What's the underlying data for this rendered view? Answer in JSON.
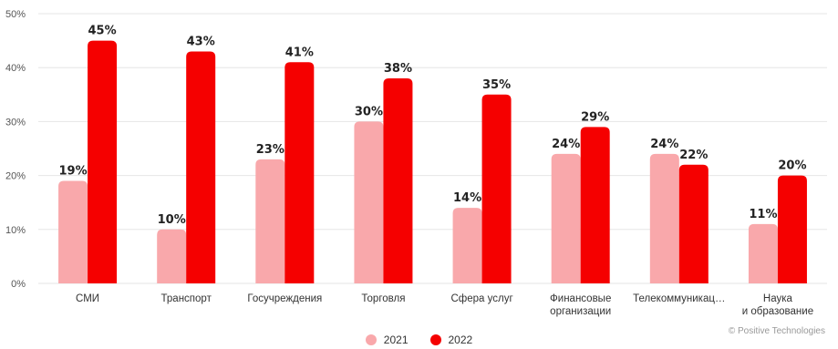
{
  "chart_data": {
    "type": "bar",
    "categories": [
      "СМИ",
      "Транспорт",
      "Госучреждения",
      "Торговля",
      "Сфера услуг",
      "Финансовые организации",
      "Телекоммуникац…",
      "Наука и образование"
    ],
    "series": [
      {
        "name": "2021",
        "values": [
          19,
          10,
          23,
          30,
          14,
          24,
          24,
          11
        ],
        "color": "#f9a8ab"
      },
      {
        "name": "2022",
        "values": [
          45,
          43,
          41,
          38,
          35,
          29,
          22,
          20
        ],
        "color": "#f50000"
      }
    ],
    "y_ticks": [
      "0%",
      "10%",
      "20%",
      "30%",
      "40%",
      "50%"
    ],
    "ylim": [
      0,
      50
    ],
    "value_suffix": "%",
    "grid": true,
    "legend_position": "bottom-center"
  },
  "credit": "© Positive Technologies"
}
